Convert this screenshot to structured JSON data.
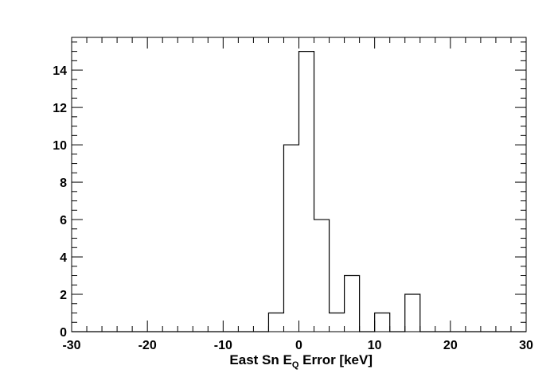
{
  "chart_data": {
    "type": "bar",
    "style": "step-histogram",
    "bin_edges": [
      -30,
      -28,
      -26,
      -24,
      -22,
      -20,
      -18,
      -16,
      -14,
      -12,
      -10,
      -8,
      -6,
      -4,
      -2,
      0,
      2,
      4,
      6,
      8,
      10,
      12,
      14,
      16,
      18,
      20,
      22,
      24,
      26,
      28,
      30
    ],
    "values": [
      0,
      0,
      0,
      0,
      0,
      0,
      0,
      0,
      0,
      0,
      0,
      0,
      0,
      1,
      10,
      15,
      6,
      1,
      3,
      0,
      1,
      0,
      2,
      0,
      0,
      0,
      0,
      0,
      0,
      0
    ],
    "xlim": [
      -30,
      30
    ],
    "ylim": [
      0,
      15.75
    ],
    "x_ticks": [
      -30,
      -20,
      -10,
      0,
      10,
      20,
      30
    ],
    "y_ticks": [
      0,
      2,
      4,
      6,
      8,
      10,
      12,
      14
    ],
    "xlabel": {
      "main": "East Sn E",
      "sub": "Q",
      "rest": " Error [keV]"
    },
    "ylabel": "",
    "title": "",
    "grid": false,
    "colors": {
      "line": "#000000",
      "frame": "#000000",
      "background": "#ffffff"
    }
  }
}
